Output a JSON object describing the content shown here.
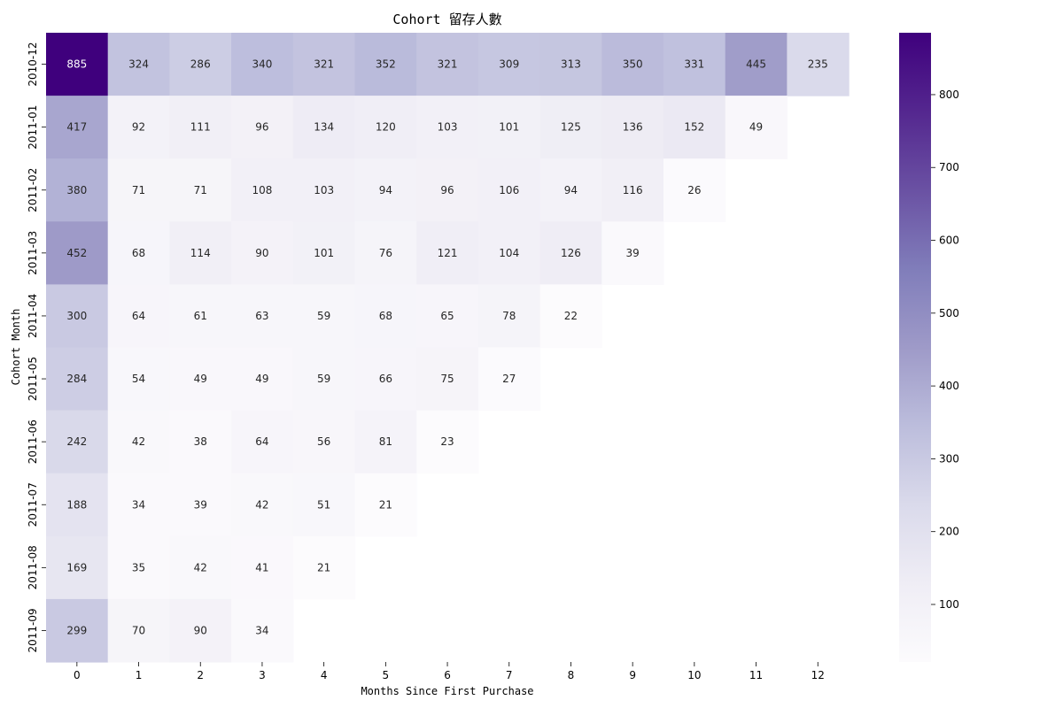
{
  "chart_data": {
    "type": "heatmap",
    "title": "Cohort 留存人數",
    "xlabel": "Months Since First Purchase",
    "ylabel": "Cohort Month",
    "x_categories": [
      "0",
      "1",
      "2",
      "3",
      "4",
      "5",
      "6",
      "7",
      "8",
      "9",
      "10",
      "11",
      "12"
    ],
    "y_categories": [
      "2010-12",
      "2011-01",
      "2011-02",
      "2011-03",
      "2011-04",
      "2011-05",
      "2011-06",
      "2011-07",
      "2011-08",
      "2011-09"
    ],
    "values": [
      [
        885,
        324,
        286,
        340,
        321,
        352,
        321,
        309,
        313,
        350,
        331,
        445,
        235
      ],
      [
        417,
        92,
        111,
        96,
        134,
        120,
        103,
        101,
        125,
        136,
        152,
        49,
        null
      ],
      [
        380,
        71,
        71,
        108,
        103,
        94,
        96,
        106,
        94,
        116,
        26,
        null,
        null
      ],
      [
        452,
        68,
        114,
        90,
        101,
        76,
        121,
        104,
        126,
        39,
        null,
        null,
        null
      ],
      [
        300,
        64,
        61,
        63,
        59,
        68,
        65,
        78,
        22,
        null,
        null,
        null,
        null
      ],
      [
        284,
        54,
        49,
        49,
        59,
        66,
        75,
        27,
        null,
        null,
        null,
        null,
        null
      ],
      [
        242,
        42,
        38,
        64,
        56,
        81,
        23,
        null,
        null,
        null,
        null,
        null,
        null
      ],
      [
        188,
        34,
        39,
        42,
        51,
        21,
        null,
        null,
        null,
        null,
        null,
        null,
        null
      ],
      [
        169,
        35,
        42,
        41,
        21,
        null,
        null,
        null,
        null,
        null,
        null,
        null,
        null
      ],
      [
        299,
        70,
        90,
        34,
        null,
        null,
        null,
        null,
        null,
        null,
        null,
        null,
        null
      ]
    ],
    "colormap": "Purples",
    "colorbar": {
      "min": 21,
      "max": 885,
      "ticks": [
        100,
        200,
        300,
        400,
        500,
        600,
        700,
        800
      ]
    },
    "colors": {
      "low": "#fcfbfd",
      "high": "#3f007d",
      "text_light": "#ffffff",
      "text_dark": "#262626"
    }
  }
}
